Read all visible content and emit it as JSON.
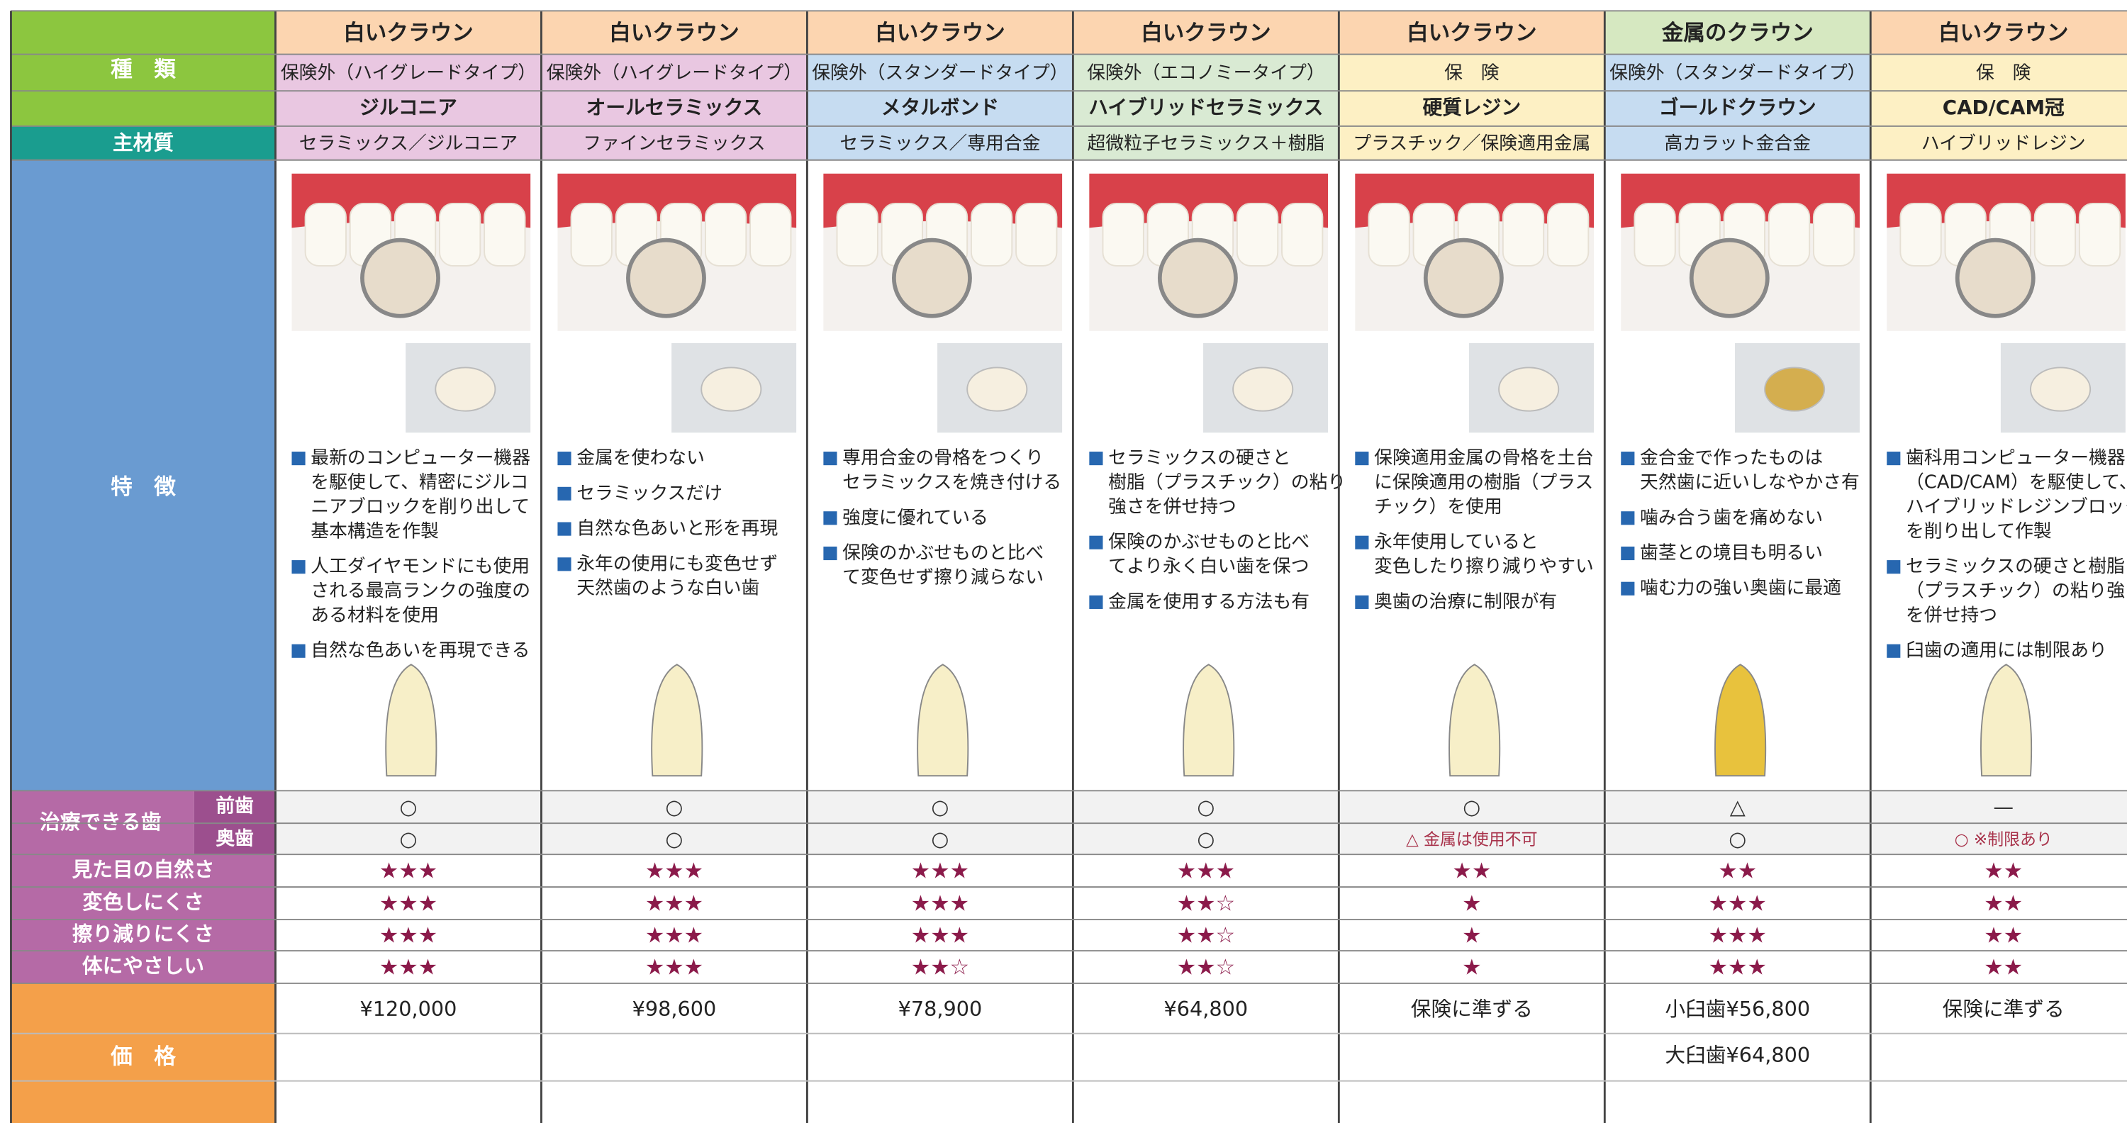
{
  "row_labels": {
    "type": "種　類",
    "material": "主材質",
    "features": "特　徴",
    "treatable": "治療できる歯",
    "front": "前歯",
    "back": "奥歯",
    "natural": "見た目の自然さ",
    "discolor": "変色しにくさ",
    "wear": "擦り減りにくさ",
    "gentle": "体にやさしい",
    "price": "価　格"
  },
  "columns": [
    {
      "category": "白いクラウン",
      "insurance": "保険外（ハイグレードタイプ）",
      "name": "ジルコニア",
      "material": "セラミックス／ジルコニア",
      "features": [
        [
          "最新のコンピューター機器",
          "を駆使して、精密にジルコ",
          "ニアブロックを削り出して",
          "基本構造を作製"
        ],
        [
          "人工ダイヤモンドにも使用",
          "される最高ランクの強度の",
          "ある材料を使用"
        ],
        [
          "自然な色あいを再現できる"
        ]
      ],
      "front": "○",
      "back": "○",
      "natural": "★★★",
      "discolor": "★★★",
      "wear": "★★★",
      "gentle": "★★★",
      "price": [
        "¥120,000"
      ]
    },
    {
      "category": "白いクラウン",
      "insurance": "保険外（ハイグレードタイプ）",
      "name": "オールセラミックス",
      "material": "ファインセラミックス",
      "features": [
        [
          "金属を使わない"
        ],
        [
          "セラミックスだけ"
        ],
        [
          "自然な色あいと形を再現"
        ],
        [
          "永年の使用にも変色せず",
          "天然歯のような白い歯"
        ]
      ],
      "front": "○",
      "back": "○",
      "natural": "★★★",
      "discolor": "★★★",
      "wear": "★★★",
      "gentle": "★★★",
      "price": [
        "¥98,600"
      ]
    },
    {
      "category": "白いクラウン",
      "insurance": "保険外（スタンダードタイプ）",
      "name": "メタルボンド",
      "material": "セラミックス／専用合金",
      "features": [
        [
          "専用合金の骨格をつくり",
          "セラミックスを焼き付ける"
        ],
        [
          "強度に優れている"
        ],
        [
          "保険のかぶせものと比べ",
          "て変色せず擦り減らない"
        ]
      ],
      "front": "○",
      "back": "○",
      "natural": "★★★",
      "discolor": "★★★",
      "wear": "★★★",
      "gentle": "★★☆",
      "price": [
        "¥78,900"
      ]
    },
    {
      "category": "白いクラウン",
      "insurance": "保険外（エコノミータイプ）",
      "name": "ハイブリッドセラミックス",
      "material": "超微粒子セラミックス＋樹脂",
      "features": [
        [
          "セラミックスの硬さと",
          "樹脂（プラスチック）の粘り",
          "強さを併せ持つ"
        ],
        [
          "保険のかぶせものと比べ",
          "てより永く白い歯を保つ"
        ],
        [
          "金属を使用する方法も有"
        ]
      ],
      "front": "○",
      "back": "○",
      "natural": "★★★",
      "discolor": "★★☆",
      "wear": "★★☆",
      "gentle": "★★☆",
      "price": [
        "¥64,800"
      ]
    },
    {
      "category": "白いクラウン",
      "insurance": "保　険",
      "name": "硬質レジン",
      "material": "プラスチック／保険適用金属",
      "features": [
        [
          "保険適用金属の骨格を土台",
          "に保険適用の樹脂（プラス",
          "チック）を使用"
        ],
        [
          "永年使用していると",
          "変色したり擦り減りやすい"
        ],
        [
          "奥歯の治療に制限が有"
        ]
      ],
      "front": "○",
      "back": "△ 金属は使用不可",
      "natural": "★★",
      "discolor": "★",
      "wear": "★",
      "gentle": "★",
      "price": [
        "保険に準ずる"
      ]
    },
    {
      "category": "金属のクラウン",
      "insurance": "保険外（スタンダードタイプ）",
      "name": "ゴールドクラウン",
      "material": "高カラット金合金",
      "features": [
        [
          "金合金で作ったものは",
          "天然歯に近いしなやかさ有"
        ],
        [
          "噛み合う歯を痛めない"
        ],
        [
          "歯茎との境目も明るい"
        ],
        [
          "噛む力の強い奥歯に最適"
        ]
      ],
      "front": "△",
      "back": "○",
      "natural": "★★",
      "discolor": "★★★",
      "wear": "★★★",
      "gentle": "★★★",
      "price": [
        "小臼歯¥56,800",
        "大臼歯¥64,800"
      ]
    },
    {
      "category": "白いクラウン",
      "insurance": "保　険",
      "name": "CAD/CAM冠",
      "material": "ハイブリッドレジン",
      "features": [
        [
          "歯科用コンピューター機器",
          "（CAD/CAM）を駆使して、",
          "ハイブリッドレジンブロック",
          "を削り出して作製"
        ],
        [
          "セラミックスの硬さと樹脂",
          "（プラスチック）の粘り強さ",
          "を併せ持つ"
        ],
        [
          "臼歯の適用には制限あり"
        ]
      ],
      "front": "—",
      "back": "○ ※制限あり",
      "natural": "★★",
      "discolor": "★★",
      "wear": "★★",
      "gentle": "★★",
      "price": [
        "保険に準ずる"
      ]
    }
  ]
}
